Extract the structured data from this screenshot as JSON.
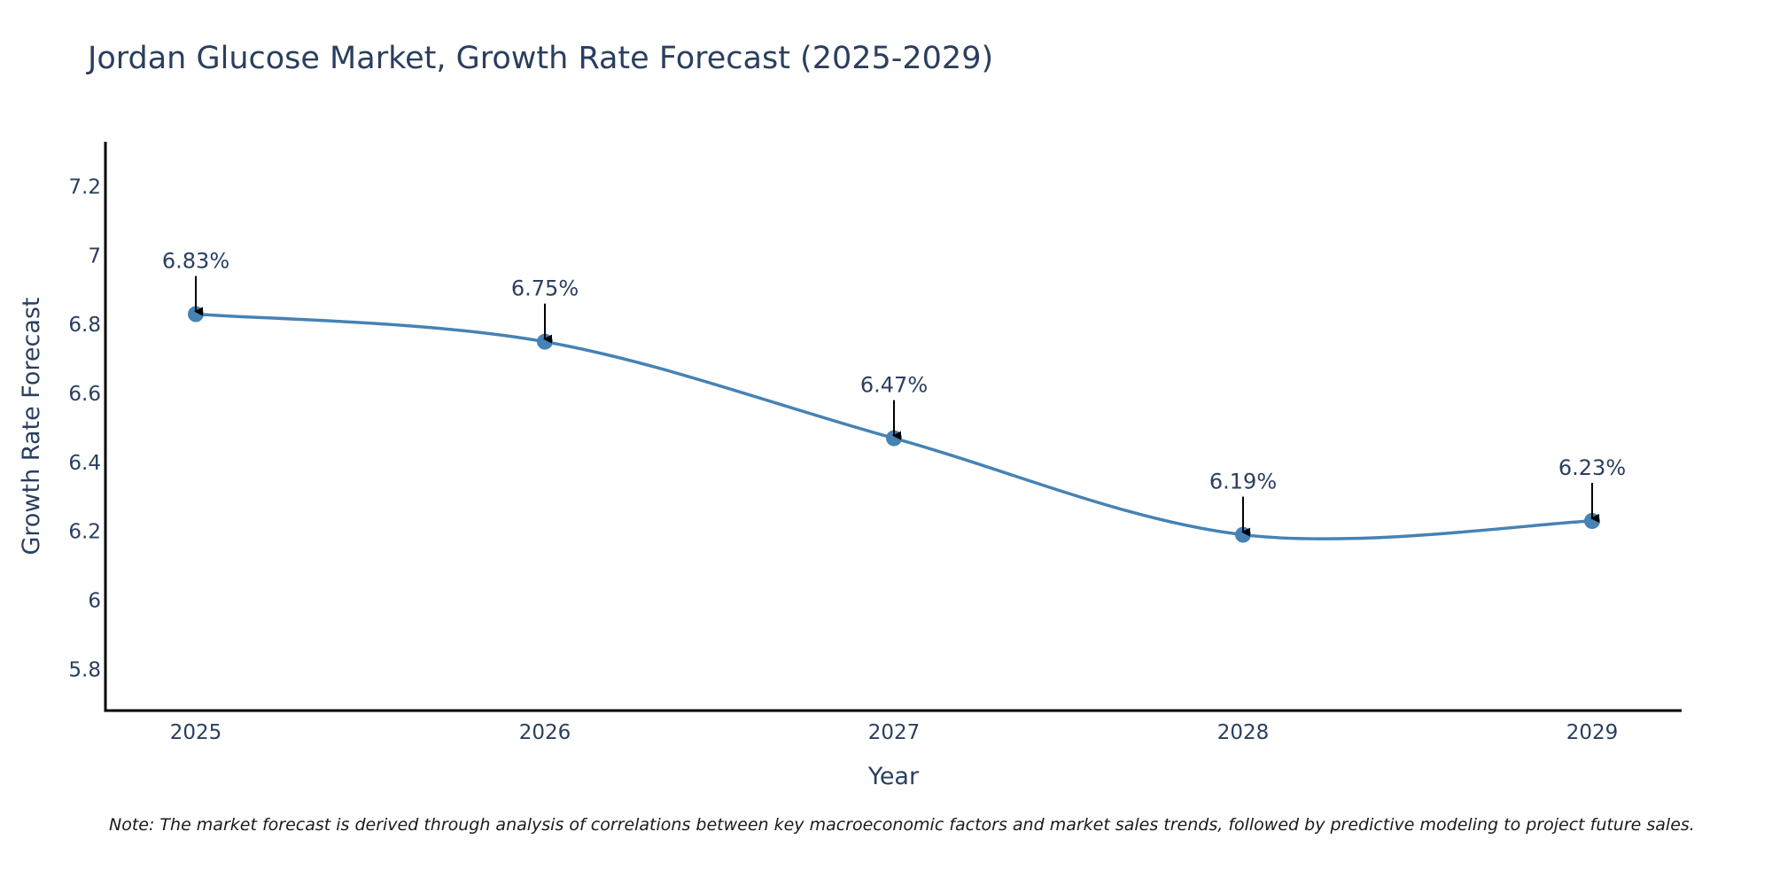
{
  "chart_data": {
    "type": "line",
    "title": "Jordan Glucose Market, Growth Rate Forecast (2025-2029)",
    "xlabel": "Year",
    "ylabel": "Growth Rate Forecast",
    "categories": [
      "2025",
      "2026",
      "2027",
      "2028",
      "2029"
    ],
    "values": [
      6.83,
      6.75,
      6.47,
      6.19,
      6.23
    ],
    "data_labels": [
      "6.83%",
      "6.75%",
      "6.47%",
      "6.19%",
      "6.23%"
    ],
    "y_ticks": [
      5.8,
      6,
      6.2,
      6.4,
      6.6,
      6.8,
      7,
      7.2
    ],
    "y_tick_labels": [
      "5.8",
      "6",
      "6.2",
      "6.4",
      "6.6",
      "6.8",
      "7",
      "7.2"
    ],
    "ylim": [
      5.68,
      7.33
    ],
    "grid": false,
    "line_color": "#4682b4",
    "annotation_arrow_color": "#000000",
    "note": "Note: The market forecast is derived through analysis of correlations between key macroeconomic factors and market sales trends, followed by predictive modeling to project future sales."
  }
}
